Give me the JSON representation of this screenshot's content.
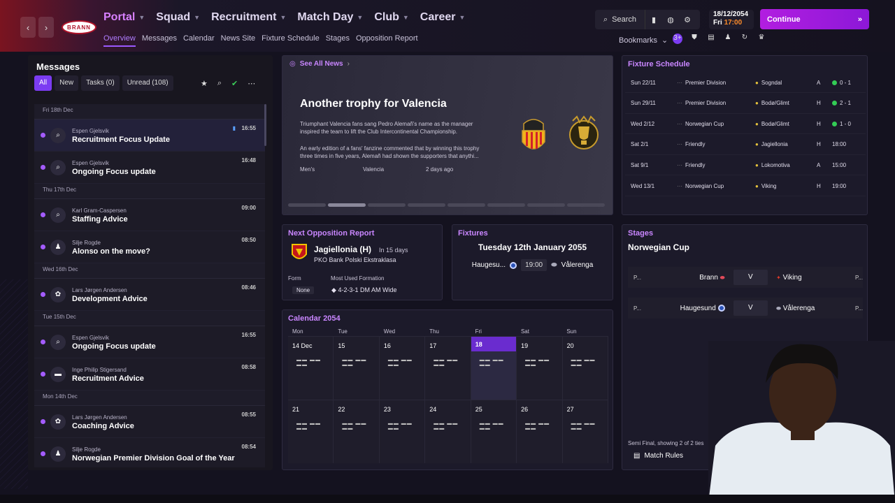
{
  "nav": {
    "club_badge": "BRANN",
    "main_menu": [
      {
        "label": "Portal",
        "active": true
      },
      {
        "label": "Squad"
      },
      {
        "label": "Recruitment"
      },
      {
        "label": "Match Day"
      },
      {
        "label": "Club"
      },
      {
        "label": "Career"
      }
    ],
    "sub_menu": [
      "Overview",
      "Messages",
      "Calendar",
      "News Site",
      "Fixture Schedule",
      "Stages",
      "Opposition Report"
    ],
    "search_label": "Search",
    "date": "18/12/2054",
    "day": "Fri",
    "time": "17:00",
    "continue_label": "Continue",
    "bookmarks_label": "Bookmarks",
    "bookmark_badge": "3+"
  },
  "messages": {
    "title": "Messages",
    "filters": [
      "All",
      "New",
      "Tasks (0)",
      "Unread (108)"
    ],
    "groups": [
      {
        "day": "Fri 18th Dec",
        "items": [
          {
            "sender": "Espen Gjelsvik",
            "subject": "Recruitment Focus Update",
            "time": "16:55",
            "icon": "search-icon",
            "selected": true
          },
          {
            "sender": "Espen Gjelsvik",
            "subject": "Ongoing Focus update",
            "time": "16:48",
            "icon": "search-icon"
          }
        ]
      },
      {
        "day": "Thu 17th Dec",
        "items": [
          {
            "sender": "Karl Gram-Caspersen",
            "subject": "Staffing Advice",
            "time": "09:00",
            "icon": "search-icon"
          },
          {
            "sender": "Silje Rogde",
            "subject": "Alonso on the move?",
            "time": "08:50",
            "icon": "people-icon"
          }
        ]
      },
      {
        "day": "Wed 16th Dec",
        "items": [
          {
            "sender": "Lars Jørgen Andersen",
            "subject": "Development Advice",
            "time": "08:46",
            "icon": "paw-icon"
          }
        ]
      },
      {
        "day": "Tue 15th Dec",
        "items": [
          {
            "sender": "Espen Gjelsvik",
            "subject": "Ongoing Focus update",
            "time": "16:55",
            "icon": "search-icon"
          },
          {
            "sender": "Inge Philip Stigersand",
            "subject": "Recruitment Advice",
            "time": "08:58",
            "icon": "briefcase-icon"
          }
        ]
      },
      {
        "day": "Mon 14th Dec",
        "items": [
          {
            "sender": "Lars Jørgen Andersen",
            "subject": "Coaching Advice",
            "time": "08:55",
            "icon": "paw-icon"
          },
          {
            "sender": "Silje Rogde",
            "subject": "Norwegian Premier Division Goal of the Year",
            "time": "08:54",
            "icon": "people-icon"
          }
        ]
      }
    ]
  },
  "news": {
    "link": "See All News",
    "headline": "Another trophy for Valencia",
    "para1": "Triumphant Valencia fans sang Pedro Alemañ's name as the manager inspired the team to lift the Club Intercontinental Championship.",
    "para2": "An early edition of a fans' fanzine commented that by winning this trophy three times in five years, Alemañ had shown the supporters that anythi...",
    "tag1": "Men's",
    "tag2": "Valencia",
    "tag3": "2 days ago"
  },
  "fixture_schedule": {
    "title": "Fixture Schedule",
    "rows": [
      {
        "date": "Sun 22/11",
        "comp": "Premier Division",
        "opp": "Sogndal",
        "venue": "A",
        "result": "0 - 1"
      },
      {
        "date": "Sun 29/11",
        "comp": "Premier Division",
        "opp": "Bodø/Glimt",
        "venue": "H",
        "result": "2 - 1"
      },
      {
        "date": "Wed 2/12",
        "comp": "Norwegian Cup",
        "opp": "Bodø/Glimt",
        "venue": "H",
        "result": "1 - 0"
      },
      {
        "date": "Sat 2/1",
        "comp": "Friendly",
        "opp": "Jagiellonia",
        "venue": "H",
        "result": "18:00"
      },
      {
        "date": "Sat 9/1",
        "comp": "Friendly",
        "opp": "Lokomotiva",
        "venue": "A",
        "result": "15:00"
      },
      {
        "date": "Wed 13/1",
        "comp": "Norwegian Cup",
        "opp": "Viking",
        "venue": "H",
        "result": "19:00"
      }
    ]
  },
  "opposition": {
    "title": "Next Opposition Report",
    "name": "Jagiellonia (H)",
    "when": "In 15 days",
    "league": "PKO Bank Polski Ekstraklasa",
    "form_label": "Form",
    "form_value": "None",
    "formation_label": "Most Used Formation",
    "formation_value": "4-2-3-1 DM AM Wide"
  },
  "next_fixture": {
    "title": "Fixtures",
    "date": "Tuesday 12th January 2055",
    "home": "Haugesu...",
    "kickoff": "19:00",
    "away": "Vålerenga"
  },
  "stages": {
    "title": "Stages",
    "competition": "Norwegian Cup",
    "ties": [
      {
        "left": "P...",
        "home": "Brann",
        "vs": "V",
        "away": "Viking",
        "right": "P..."
      },
      {
        "left": "P...",
        "home": "Haugesund",
        "vs": "V",
        "away": "Vålerenga",
        "right": "P..."
      }
    ],
    "footer": "Semi Final, showing 2 of 2 ties",
    "rules": "Match Rules"
  },
  "calendar": {
    "title": "Calendar 2054",
    "weekdays": [
      "Mon",
      "Tue",
      "Wed",
      "Thu",
      "Fri",
      "Sat",
      "Sun"
    ],
    "days": [
      "14 Dec",
      "15",
      "16",
      "17",
      "18",
      "19",
      "20",
      "21",
      "22",
      "23",
      "24",
      "25",
      "26",
      "27"
    ],
    "today_index": 4
  },
  "colors": {
    "accent": "#9b59ff",
    "continue": "#b21ee0",
    "win": "#33cc55"
  }
}
